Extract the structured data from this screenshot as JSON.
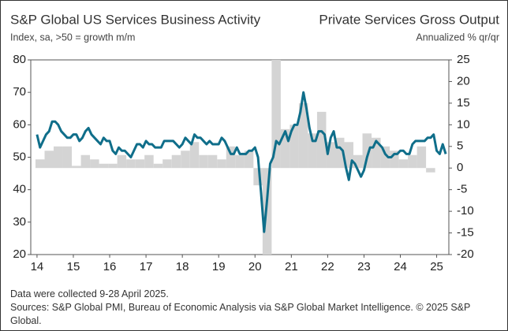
{
  "chart_data": {
    "type": "line_bar",
    "title": "S&P Global US Services Business Activity",
    "subtitle": "Index, sa, >50 = growth m/m",
    "y2title": "Private Services Gross Output",
    "y2subtitle": "Annualized % qr/qr",
    "footnotes": [
      "Data were collected 9-28 April 2025.",
      "Sources: S&P Global PMI, Bureau of Economic Analysis via S&P Global Market Intelligence. © 2025 S&P Global."
    ],
    "categories": [
      "14",
      null,
      null,
      null,
      null,
      null,
      null,
      null,
      null,
      null,
      null,
      null,
      "15",
      null,
      null,
      null,
      null,
      null,
      null,
      null,
      null,
      null,
      null,
      null,
      "16",
      null,
      null,
      null,
      null,
      null,
      null,
      null,
      null,
      null,
      null,
      null,
      "17",
      null,
      null,
      null,
      null,
      null,
      null,
      null,
      null,
      null,
      null,
      null,
      "18",
      null,
      null,
      null,
      null,
      null,
      null,
      null,
      null,
      null,
      null,
      null,
      "19",
      null,
      null,
      null,
      null,
      null,
      null,
      null,
      null,
      null,
      null,
      null,
      "20",
      null,
      null,
      null,
      null,
      null,
      null,
      null,
      null,
      null,
      null,
      null,
      "21",
      null,
      null,
      null,
      null,
      null,
      null,
      null,
      null,
      null,
      null,
      null,
      "22",
      null,
      null,
      null,
      null,
      null,
      null,
      null,
      null,
      null,
      null,
      null,
      "23",
      null,
      null,
      null,
      null,
      null,
      null,
      null,
      null,
      null,
      null,
      null,
      "24",
      null,
      null,
      null,
      null,
      null,
      null,
      null,
      null,
      null,
      null,
      null,
      "25",
      null,
      null,
      null
    ],
    "series": [
      {
        "name": "Private Services Gross Output",
        "kind": "bar",
        "axis": "y2",
        "color": "#d4d4d4",
        "values": [
          null,
          2,
          null,
          null,
          4,
          null,
          null,
          5,
          null,
          null,
          5,
          null,
          null,
          0.5,
          null,
          null,
          3,
          null,
          null,
          2,
          null,
          null,
          1,
          null,
          null,
          1,
          null,
          null,
          3,
          null,
          null,
          2,
          null,
          null,
          2,
          null,
          null,
          3,
          null,
          null,
          1,
          null,
          null,
          2,
          null,
          null,
          3,
          null,
          null,
          4,
          null,
          null,
          6,
          null,
          null,
          3,
          null,
          null,
          3,
          null,
          null,
          2,
          null,
          null,
          5,
          null,
          null,
          3,
          null,
          null,
          4,
          null,
          null,
          -4,
          null,
          null,
          -20,
          null,
          null,
          25,
          null,
          null,
          9,
          null,
          null,
          10,
          null,
          null,
          15,
          null,
          null,
          8,
          null,
          null,
          13,
          null,
          null,
          6,
          null,
          null,
          7,
          null,
          null,
          6,
          null,
          null,
          3,
          null,
          null,
          8,
          null,
          null,
          7,
          null,
          null,
          5,
          null,
          null,
          4,
          null,
          null,
          2,
          null,
          null,
          3,
          null,
          null,
          5,
          null,
          null,
          -1,
          null,
          null,
          null,
          null,
          null
        ]
      },
      {
        "name": "S&P Global US Services Business Activity",
        "kind": "line",
        "axis": "y",
        "color": "#0f6e8a",
        "values": [
          57,
          53,
          55,
          57,
          58,
          61,
          61,
          60,
          58,
          57,
          56,
          56,
          57,
          57,
          55,
          56,
          58,
          59,
          57,
          56,
          55,
          54,
          56,
          55,
          55,
          52,
          51,
          53,
          52,
          52,
          51,
          50,
          52,
          54,
          54,
          53,
          55,
          54,
          54,
          53,
          53,
          53,
          55,
          55,
          55,
          55,
          54,
          53,
          54,
          56,
          55,
          54,
          57,
          56,
          56,
          55,
          54,
          55,
          54,
          54,
          54,
          56,
          55,
          53,
          51,
          51,
          53,
          51,
          51,
          51,
          52,
          52,
          53,
          50,
          39,
          27,
          37,
          48,
          50,
          55,
          54,
          56,
          58,
          55,
          58,
          60,
          60,
          64,
          70,
          65,
          59,
          55,
          55,
          58,
          58,
          57,
          51,
          56,
          58,
          53,
          53,
          52,
          47,
          43,
          49,
          48,
          46,
          44,
          46,
          50,
          53,
          53,
          55,
          54,
          53,
          51,
          50,
          50,
          51,
          51,
          52,
          52,
          51,
          51,
          54,
          55,
          55,
          55,
          55,
          56,
          56,
          57,
          52,
          51,
          54,
          51
        ]
      }
    ],
    "ylim": [
      20,
      80
    ],
    "yticks": [
      20,
      30,
      40,
      50,
      60,
      70,
      80
    ],
    "y2lim": [
      -20,
      25
    ],
    "y2ticks": [
      -20,
      -15,
      -10,
      -5,
      0,
      5,
      10,
      15,
      20,
      25
    ]
  }
}
